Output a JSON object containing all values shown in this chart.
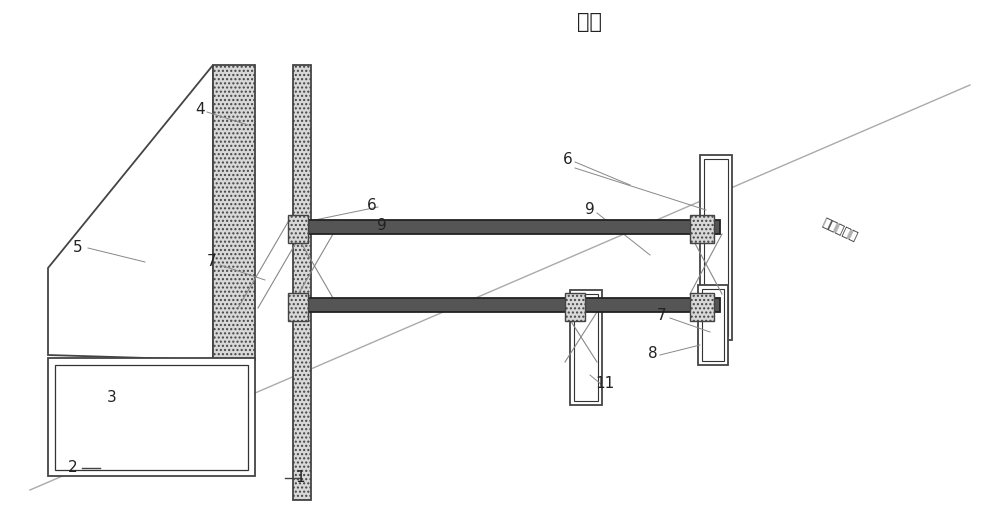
{
  "title": "坡顶",
  "natural_ground_label": "天然地面线",
  "bg_color": "#ffffff",
  "lc": "#555555",
  "dc": "#333333",
  "gc": "#888888",
  "fc_hatch": "#d8d8d8",
  "fc_beam": "#555555",
  "fc_white": "#ffffff"
}
